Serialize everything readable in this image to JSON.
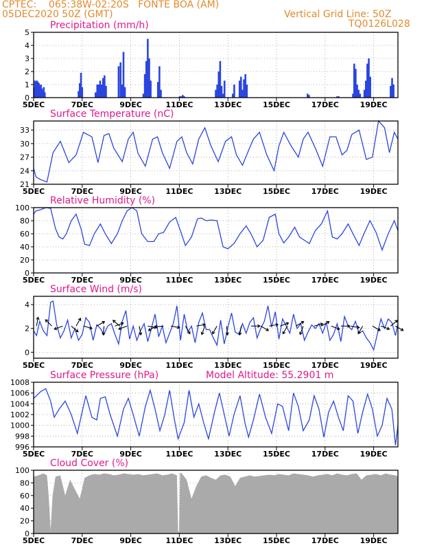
{
  "header": {
    "line1": "CPTEC:    065:38W-02:20S   FONTE BOA (AM)",
    "line2": "05DEC2020 50Z (GMT)",
    "grid_note": "Vertical Grid Line: 50Z",
    "model": "TQ0126L028"
  },
  "colors": {
    "header": "#e08a2c",
    "title": "#e0198a",
    "line": "#2b45e0",
    "bar": "#2b45e0",
    "cloud": "#aaaaaa",
    "arrow": "#000000",
    "grid": "#9a9a9a"
  },
  "x_axis": {
    "tick_labels": [
      "5DEC",
      "7DEC",
      "9DEC",
      "11DEC",
      "13DEC",
      "15DEC",
      "17DEC",
      "19DEC"
    ],
    "tick_days": [
      0,
      2,
      4,
      6,
      8,
      10,
      12,
      14
    ],
    "range_days": [
      0,
      15
    ]
  },
  "chart_data": [
    {
      "type": "bar",
      "title": "Precipitation (mm/h)",
      "ylim": [
        0,
        5
      ],
      "yticks": [
        0,
        1,
        2,
        3,
        4,
        5
      ],
      "x": [
        0.02,
        0.06,
        0.1,
        0.14,
        0.18,
        0.22,
        0.26,
        0.3,
        0.34,
        0.38,
        0.42,
        0.46,
        1.85,
        1.9,
        1.95,
        2.0,
        2.55,
        2.62,
        2.68,
        2.74,
        2.8,
        2.86,
        2.92,
        2.98,
        3.5,
        3.58,
        3.64,
        3.7,
        3.76,
        4.52,
        4.58,
        4.64,
        4.7,
        4.76,
        4.82,
        5.12,
        5.18,
        5.24,
        6.02,
        6.08,
        6.14,
        6.2,
        7.5,
        7.56,
        7.62,
        7.68,
        7.74,
        7.8,
        7.86,
        8.2,
        8.26,
        8.48,
        8.54,
        8.6,
        8.66,
        8.72,
        8.78,
        11.28,
        11.34,
        12.5,
        12.56,
        13.15,
        13.2,
        13.26,
        13.32,
        13.38,
        13.44,
        13.62,
        13.68,
        13.74,
        13.8,
        13.86,
        14.7,
        14.76,
        14.82
      ],
      "values": [
        0.8,
        1.3,
        1.2,
        1.3,
        1.2,
        1.1,
        0.9,
        1.0,
        0.7,
        0.5,
        0.8,
        0.4,
        0.5,
        1.1,
        1.9,
        0.8,
        0.4,
        1.0,
        1.0,
        1.3,
        1.0,
        1.5,
        1.7,
        0.9,
        2.4,
        2.7,
        1.0,
        3.5,
        0.8,
        0.3,
        1.8,
        2.8,
        4.5,
        3.0,
        1.3,
        1.2,
        2.4,
        0.6,
        0.1,
        0.1,
        0.2,
        0.1,
        0.6,
        1.0,
        2.0,
        2.8,
        0.9,
        0.3,
        1.3,
        0.3,
        1.0,
        1.3,
        1.6,
        0.6,
        1.4,
        1.8,
        1.0,
        0.3,
        0.2,
        0.1,
        0.1,
        0.3,
        2.6,
        2.2,
        1.0,
        0.6,
        0.3,
        0.6,
        1.3,
        2.6,
        3.0,
        1.6,
        0.9,
        1.5,
        1.0
      ]
    },
    {
      "type": "line",
      "title": "Surface Temperature (nC)",
      "ylim": [
        21,
        35
      ],
      "yticks": [
        21,
        24,
        27,
        30,
        33
      ],
      "x": [
        0,
        0.1,
        0.3,
        0.55,
        0.8,
        1.1,
        1.45,
        1.75,
        2.05,
        2.4,
        2.65,
        2.9,
        3.1,
        3.3,
        3.65,
        3.9,
        4.1,
        4.3,
        4.6,
        4.9,
        5.1,
        5.3,
        5.6,
        5.9,
        6.1,
        6.3,
        6.55,
        6.8,
        7.05,
        7.3,
        7.6,
        7.9,
        8.15,
        8.35,
        8.6,
        8.85,
        9.05,
        9.3,
        9.6,
        9.9,
        10.1,
        10.3,
        10.6,
        10.9,
        11.1,
        11.3,
        11.6,
        11.9,
        12.2,
        12.45,
        12.7,
        12.9,
        13.1,
        13.4,
        13.7,
        13.95,
        14.2,
        14.45,
        14.65,
        14.85,
        15.0
      ],
      "values": [
        24.5,
        22.6,
        22.0,
        21.5,
        28.0,
        30.5,
        25.8,
        27.5,
        32.5,
        31.5,
        25.8,
        31.8,
        32.2,
        29.0,
        26.0,
        31.0,
        32.5,
        27.8,
        25.0,
        31.0,
        31.5,
        28.0,
        24.5,
        30.5,
        31.5,
        28.0,
        25.5,
        31.0,
        33.5,
        29.5,
        26.0,
        30.5,
        31.5,
        27.5,
        25.2,
        28.5,
        31.0,
        32.5,
        27.5,
        24.0,
        29.5,
        32.5,
        29.5,
        27.0,
        31.0,
        32.5,
        29.0,
        25.0,
        31.5,
        31.5,
        27.5,
        28.5,
        32.0,
        33.0,
        26.5,
        27.0,
        35.0,
        33.5,
        28.0,
        32.5,
        31.0
      ]
    },
    {
      "type": "line",
      "title": "Relative Humidity (%)",
      "ylim": [
        0,
        100
      ],
      "yticks": [
        0,
        20,
        40,
        60,
        80,
        100
      ],
      "x": [
        0,
        0.1,
        0.3,
        0.5,
        0.7,
        0.9,
        1.05,
        1.2,
        1.35,
        1.55,
        1.75,
        1.95,
        2.1,
        2.3,
        2.5,
        2.75,
        2.95,
        3.2,
        3.45,
        3.65,
        3.85,
        4.05,
        4.25,
        4.45,
        4.7,
        4.95,
        5.15,
        5.35,
        5.6,
        5.85,
        6.05,
        6.25,
        6.5,
        6.75,
        6.9,
        7.1,
        7.3,
        7.55,
        7.8,
        8.0,
        8.25,
        8.5,
        8.75,
        8.95,
        9.2,
        9.45,
        9.7,
        9.95,
        10.1,
        10.3,
        10.5,
        10.75,
        10.95,
        11.15,
        11.35,
        11.6,
        11.85,
        12.1,
        12.3,
        12.5,
        12.7,
        12.95,
        13.15,
        13.4,
        13.6,
        13.85,
        14.1,
        14.35,
        14.6,
        14.85,
        15.0
      ],
      "values": [
        90,
        95,
        97,
        100,
        99,
        68,
        55,
        52,
        60,
        80,
        90,
        68,
        44,
        42,
        60,
        75,
        60,
        45,
        60,
        80,
        95,
        100,
        95,
        60,
        48,
        48,
        60,
        62,
        78,
        85,
        64,
        42,
        55,
        83,
        84,
        80,
        81,
        80,
        40,
        37,
        45,
        60,
        72,
        60,
        40,
        50,
        85,
        90,
        60,
        46,
        55,
        70,
        55,
        50,
        45,
        65,
        75,
        95,
        55,
        52,
        60,
        75,
        60,
        42,
        60,
        80,
        62,
        35,
        60,
        80,
        65
      ]
    },
    {
      "type": "line",
      "title": "Surface Wind (m/s)",
      "ylim": [
        -0.5,
        4.7
      ],
      "yticks": [
        0,
        2,
        4
      ],
      "x": [
        0,
        0.12,
        0.25,
        0.4,
        0.55,
        0.7,
        0.8,
        0.95,
        1.1,
        1.25,
        1.4,
        1.55,
        1.7,
        1.85,
        2.0,
        2.15,
        2.3,
        2.45,
        2.6,
        2.75,
        2.9,
        3.05,
        3.2,
        3.35,
        3.5,
        3.65,
        3.8,
        3.95,
        4.1,
        4.25,
        4.4,
        4.55,
        4.7,
        4.85,
        5.0,
        5.15,
        5.3,
        5.45,
        5.6,
        5.75,
        5.9,
        6.05,
        6.2,
        6.35,
        6.5,
        6.65,
        6.8,
        6.95,
        7.1,
        7.25,
        7.4,
        7.55,
        7.7,
        7.85,
        8.0,
        8.15,
        8.3,
        8.45,
        8.6,
        8.75,
        8.9,
        9.05,
        9.2,
        9.35,
        9.5,
        9.65,
        9.8,
        9.95,
        10.1,
        10.25,
        10.4,
        10.55,
        10.7,
        10.85,
        11.0,
        11.15,
        11.3,
        11.45,
        11.6,
        11.75,
        11.9,
        12.05,
        12.2,
        12.35,
        12.5,
        12.65,
        12.8,
        12.95,
        13.1,
        13.25,
        13.4,
        13.55,
        13.7,
        13.85,
        14.0,
        14.15,
        14.3,
        14.45,
        14.6,
        14.75,
        14.9,
        15.0
      ],
      "values": [
        1.8,
        1.4,
        2.6,
        1.8,
        1.4,
        4.2,
        4.3,
        2.3,
        1.2,
        1.8,
        2.7,
        1.2,
        2.0,
        1.0,
        1.5,
        2.9,
        2.5,
        1.0,
        2.3,
        2.0,
        1.5,
        2.2,
        2.4,
        1.5,
        0.7,
        2.6,
        3.5,
        1.1,
        2.2,
        1.0,
        1.8,
        2.4,
        0.9,
        2.0,
        3.2,
        1.3,
        2.2,
        0.8,
        1.6,
        2.4,
        3.9,
        1.0,
        3.2,
        1.7,
        2.2,
        0.8,
        2.5,
        3.3,
        1.9,
        1.9,
        1.2,
        0.6,
        2.7,
        0.7,
        2.1,
        3.3,
        1.7,
        1.5,
        2.4,
        1.6,
        2.5,
        2.9,
        1.2,
        2.0,
        2.6,
        3.9,
        2.1,
        3.4,
        1.1,
        2.8,
        2.2,
        1.6,
        3.2,
        2.0,
        2.4,
        1.0,
        1.7,
        2.3,
        2.0,
        2.4,
        1.6,
        2.5,
        1.0,
        1.5,
        2.4,
        0.9,
        3.0,
        2.2,
        1.9,
        2.6,
        1.6,
        1.8,
        1.2,
        0.8,
        0.2,
        1.5,
        2.8,
        2.0,
        2.8,
        2.5,
        1.4,
        2.4
      ]
    },
    {
      "type": "line",
      "title": "Surface Pressure (hPa)",
      "annotation": "Model Altitude: 55.2901 m",
      "ylim": [
        996,
        1008
      ],
      "yticks": [
        996,
        998,
        1000,
        1002,
        1004,
        1006,
        1008
      ],
      "x": [
        0,
        0.3,
        0.5,
        0.7,
        0.85,
        1.05,
        1.3,
        1.55,
        1.8,
        1.95,
        2.15,
        2.4,
        2.6,
        2.75,
        2.95,
        3.15,
        3.45,
        3.7,
        3.9,
        4.1,
        4.35,
        4.6,
        4.8,
        5.0,
        5.2,
        5.4,
        5.6,
        5.8,
        5.95,
        6.2,
        6.4,
        6.6,
        6.8,
        7.0,
        7.2,
        7.45,
        7.65,
        7.85,
        8.05,
        8.25,
        8.5,
        8.7,
        8.85,
        9.05,
        9.3,
        9.55,
        9.8,
        10.05,
        10.25,
        10.5,
        10.7,
        10.9,
        11.1,
        11.35,
        11.55,
        11.75,
        11.95,
        12.15,
        12.35,
        12.55,
        12.75,
        12.95,
        13.15,
        13.35,
        13.55,
        13.75,
        13.95,
        14.15,
        14.35,
        14.55,
        14.75,
        14.9,
        15.0
      ],
      "values": [
        1005,
        1006.3,
        1006.8,
        1004.5,
        1001.5,
        1003.0,
        1004.5,
        1002.0,
        998.5,
        1001.5,
        1005.5,
        1001.5,
        1001.0,
        1005.0,
        1005.3,
        1002.0,
        998.0,
        1003.0,
        1005.0,
        1002.0,
        998.0,
        1003.5,
        1006.5,
        1003.0,
        999.0,
        1002.0,
        1006.5,
        1001.0,
        997.5,
        1000.5,
        1006.5,
        1001.5,
        1004.0,
        1000.5,
        997.5,
        1002.5,
        1006.0,
        1002.0,
        998.0,
        1002.0,
        1005.5,
        1000.5,
        997.8,
        1001.0,
        1005.8,
        1001.5,
        998.5,
        1004.0,
        1003.5,
        999.0,
        1006.0,
        1003.5,
        999.0,
        1001.0,
        1005.5,
        1003.0,
        997.8,
        1002.5,
        1004.5,
        1001.5,
        999.0,
        1005.5,
        1004.5,
        998.5,
        1002.5,
        1005.8,
        1003.0,
        998.0,
        1000.0,
        1005.0,
        1003.0,
        996.3,
        1000.0
      ]
    },
    {
      "type": "area",
      "title": "Cloud Cover (%)",
      "ylim": [
        0,
        100
      ],
      "yticks": [
        0,
        20,
        40,
        60,
        80,
        100
      ],
      "x": [
        0,
        0.2,
        0.4,
        0.55,
        0.62,
        0.7,
        0.78,
        0.9,
        1.1,
        1.3,
        1.5,
        1.7,
        1.9,
        2.1,
        2.3,
        2.5,
        2.7,
        2.9,
        3.1,
        3.3,
        3.5,
        3.7,
        3.9,
        4.1,
        4.3,
        4.5,
        4.7,
        4.9,
        5.1,
        5.3,
        5.5,
        5.7,
        5.9,
        5.95,
        5.99,
        6.03,
        6.1,
        6.3,
        6.5,
        6.7,
        6.9,
        7.1,
        7.3,
        7.5,
        7.7,
        7.9,
        8.1,
        8.3,
        8.5,
        8.7,
        8.9,
        9.1,
        9.3,
        9.5,
        9.7,
        9.9,
        10.1,
        10.3,
        10.5,
        10.7,
        10.9,
        11.1,
        11.3,
        11.5,
        11.7,
        11.9,
        12.1,
        12.3,
        12.5,
        12.7,
        12.9,
        13.1,
        13.3,
        13.5,
        13.7,
        13.9,
        14.1,
        14.3,
        14.5,
        14.7,
        14.9,
        15.0
      ],
      "values": [
        90,
        92,
        95,
        92,
        60,
        5,
        60,
        90,
        92,
        60,
        85,
        70,
        55,
        88,
        92,
        94,
        93,
        95,
        94,
        92,
        93,
        95,
        94,
        93,
        94,
        92,
        93,
        94,
        95,
        92,
        93,
        95,
        92,
        2,
        4,
        96,
        95,
        85,
        55,
        75,
        90,
        92,
        88,
        85,
        92,
        93,
        90,
        75,
        88,
        90,
        92,
        90,
        91,
        92,
        93,
        92,
        94,
        93,
        92,
        95,
        94,
        93,
        92,
        90,
        92,
        93,
        94,
        92,
        95,
        93,
        92,
        94,
        95,
        85,
        92,
        93,
        94,
        92,
        95,
        93,
        92,
        90
      ]
    }
  ],
  "wind_arrows": [
    {
      "day": 0.12,
      "angle": -80
    },
    {
      "day": 0.75,
      "angle": -135
    },
    {
      "day": 1.2,
      "angle": 160
    },
    {
      "day": 1.55,
      "angle": 40
    },
    {
      "day": 1.75,
      "angle": -60
    },
    {
      "day": 2.05,
      "angle": 15
    },
    {
      "day": 2.6,
      "angle": -30
    },
    {
      "day": 2.9,
      "angle": 95
    },
    {
      "day": 3.35,
      "angle": -20
    },
    {
      "day": 3.55,
      "angle": -140
    },
    {
      "day": 3.85,
      "angle": 160
    },
    {
      "day": 4.35,
      "angle": 80
    },
    {
      "day": 4.7,
      "angle": 10
    },
    {
      "day": 5.05,
      "angle": 150
    },
    {
      "day": 5.35,
      "angle": 175
    },
    {
      "day": 5.65,
      "angle": 10
    },
    {
      "day": 6.25,
      "angle": 60
    },
    {
      "day": 6.7,
      "angle": -10
    },
    {
      "day": 7.05,
      "angle": 110
    },
    {
      "day": 7.55,
      "angle": 120
    },
    {
      "day": 7.95,
      "angle": 85
    },
    {
      "day": 8.55,
      "angle": 100
    },
    {
      "day": 8.95,
      "angle": 0
    },
    {
      "day": 9.35,
      "angle": 30
    },
    {
      "day": 9.7,
      "angle": -10
    },
    {
      "day": 10.15,
      "angle": -20
    },
    {
      "day": 10.45,
      "angle": 120
    },
    {
      "day": 10.8,
      "angle": -30
    },
    {
      "day": 11.1,
      "angle": 110
    },
    {
      "day": 11.55,
      "angle": -15
    },
    {
      "day": 11.85,
      "angle": -30
    },
    {
      "day": 12.25,
      "angle": 20
    },
    {
      "day": 12.65,
      "angle": 0
    },
    {
      "day": 13.05,
      "angle": 10
    },
    {
      "day": 13.55,
      "angle": 120
    },
    {
      "day": 13.95,
      "angle": 30
    },
    {
      "day": 14.3,
      "angle": 20
    },
    {
      "day": 14.7,
      "angle": -40
    },
    {
      "day": 14.9,
      "angle": 30
    }
  ]
}
